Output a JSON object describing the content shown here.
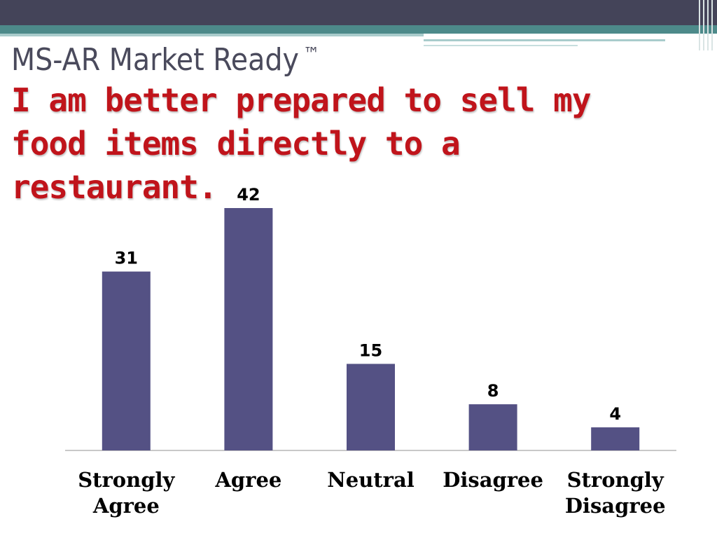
{
  "slide": {
    "title": "MS-AR Market Ready",
    "trademark": "™",
    "subtitle": " I am better prepared to sell my food items directly to a restaurant."
  },
  "colors": {
    "bar": "#545184",
    "title": "#4a4a5c",
    "subtitle": "#c0141b",
    "header_dark": "#444459",
    "header_teal": "#4d8a8a",
    "axis": "#c8c8c8"
  },
  "chart_data": {
    "type": "bar",
    "categories": [
      [
        "Strongly",
        "Agree"
      ],
      [
        "Agree"
      ],
      [
        "Neutral"
      ],
      [
        "Disagree"
      ],
      [
        "Strongly",
        "Disagree"
      ]
    ],
    "values": [
      31,
      42,
      15,
      8,
      4
    ],
    "data_labels": [
      "31",
      "42",
      "15",
      "8",
      "4"
    ],
    "ylim": [
      0,
      42
    ],
    "grid": false,
    "legend": false
  }
}
